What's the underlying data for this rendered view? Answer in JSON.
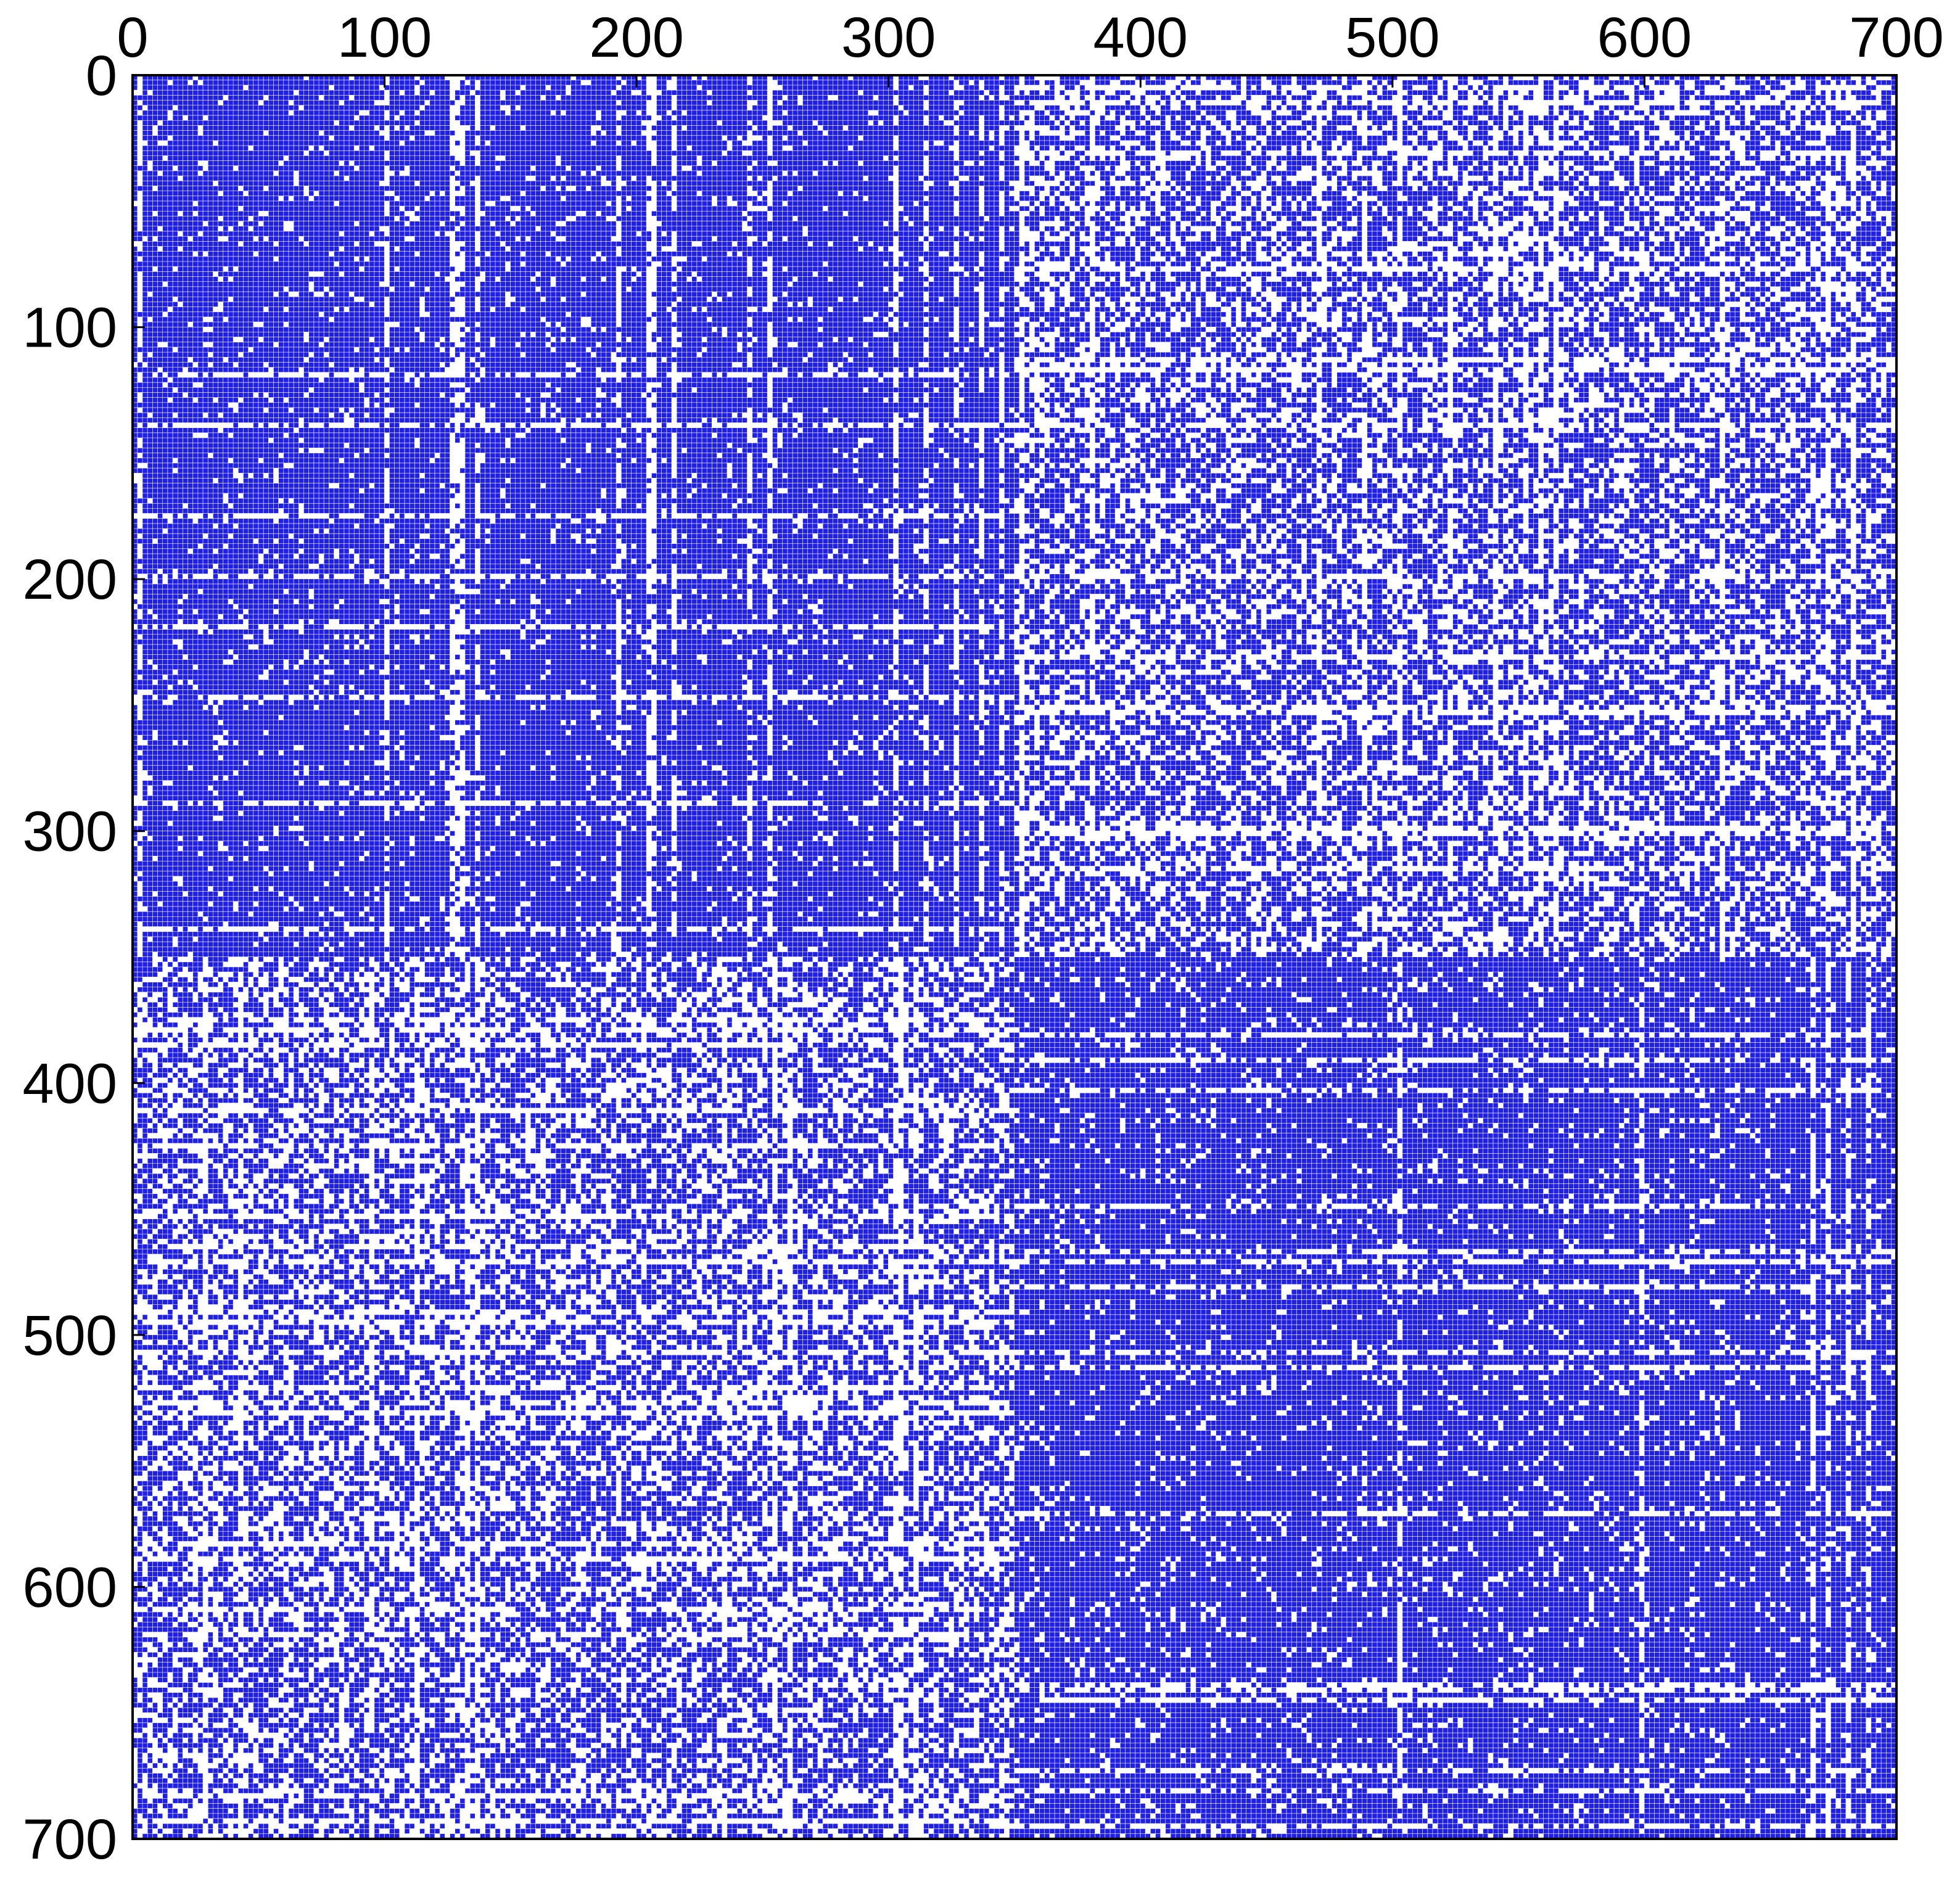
{
  "chart_data": {
    "type": "heatmap",
    "subtype": "sparsity-pattern",
    "title": "",
    "xlabel": "",
    "ylabel": "",
    "xlim": [
      0,
      700
    ],
    "ylim": [
      0,
      700
    ],
    "y_reversed": true,
    "x_axis_position": "top",
    "x_ticks": [
      0,
      100,
      200,
      300,
      400,
      500,
      600,
      700
    ],
    "y_ticks": [
      0,
      100,
      200,
      300,
      400,
      500,
      600,
      700
    ],
    "x_tick_labels": [
      "0",
      "100",
      "200",
      "300",
      "400",
      "500",
      "600",
      "700"
    ],
    "y_tick_labels": [
      "0",
      "100",
      "200",
      "300",
      "400",
      "500",
      "600",
      "700"
    ],
    "grid": false,
    "legend": "none",
    "marker_color": "#1f1fe6",
    "matrix_size": 700,
    "blocks": [
      {
        "rows": [
          0,
          350
        ],
        "cols": [
          0,
          350
        ],
        "density": 0.92
      },
      {
        "rows": [
          350,
          700
        ],
        "cols": [
          350,
          700
        ],
        "density": 0.9
      },
      {
        "rows": [
          0,
          350
        ],
        "cols": [
          350,
          700
        ],
        "density": 0.62
      },
      {
        "rows": [
          350,
          700
        ],
        "cols": [
          0,
          350
        ],
        "density": 0.62
      }
    ]
  }
}
